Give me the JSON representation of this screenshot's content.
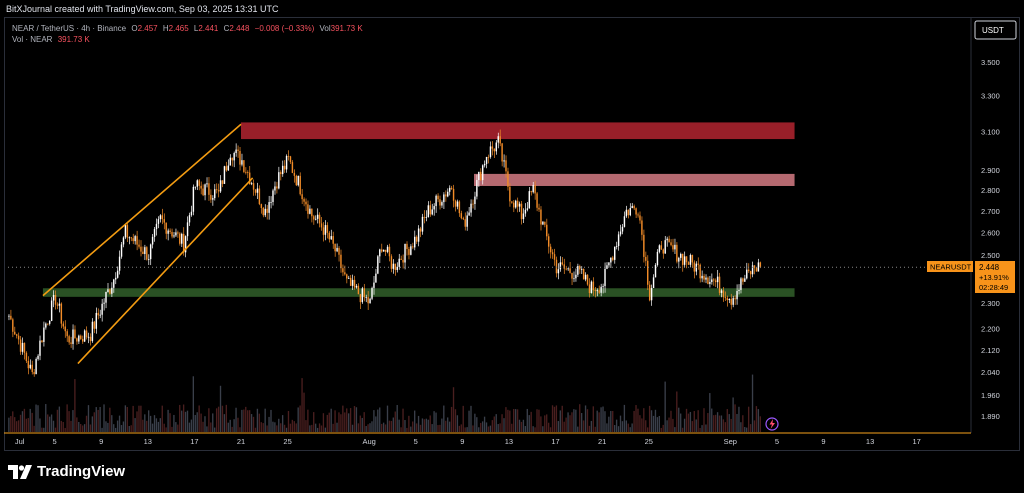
{
  "header": {
    "attribution": "BitXJournal created with TradingView.com, Sep 03, 2025 13:31 UTC"
  },
  "legend": {
    "symbol": "NEAR / TetherUS · 4h · Binance",
    "open_label": "O",
    "open": "2.457",
    "high_label": "H",
    "high": "2.465",
    "low_label": "L",
    "low": "2.441",
    "close_label": "C",
    "close": "2.448",
    "change": "−0.008 (−0.33%)",
    "volume_label": "Vol",
    "volume": "391.73 K",
    "vol_line_label": "Vol · NEAR",
    "vol_line_value": "391.73 K"
  },
  "price_scale": {
    "currency": "USDT",
    "ticks": [
      "3.500",
      "3.300",
      "3.100",
      "2.900",
      "2.800",
      "2.700",
      "2.600",
      "2.500",
      "2.300",
      "2.200",
      "2.120",
      "2.040",
      "1.960",
      "1.890"
    ]
  },
  "price_tag": {
    "symbol": "NEARUSDT",
    "price": "2.448",
    "change": "+13.91%",
    "countdown": "02:28:49"
  },
  "footer": {
    "brand": "TradingView"
  },
  "colors": {
    "up": "#ffffff",
    "down": "#f28c28",
    "channel": "#f39c12",
    "resistance_upper": "#a8222e",
    "resistance_lower": "#c9747c",
    "support": "#2f5a28"
  },
  "chart_data": {
    "type": "candlestick",
    "symbol": "NEARUSDT",
    "interval": "4h",
    "exchange": "Binance",
    "x_axis": {
      "tick_labels": [
        "Jul",
        "5",
        "9",
        "13",
        "17",
        "21",
        "25",
        "Aug",
        "5",
        "9",
        "13",
        "17",
        "21",
        "25",
        "Sep",
        "5",
        "9",
        "13",
        "17"
      ]
    },
    "y_axis": {
      "scale": "log",
      "range": [
        1.86,
        3.7
      ]
    },
    "close_path": {
      "dates": [
        "2025-07-01",
        "2025-07-03",
        "2025-07-04",
        "2025-07-05",
        "2025-07-06",
        "2025-07-08",
        "2025-07-10",
        "2025-07-11",
        "2025-07-13",
        "2025-07-14",
        "2025-07-16",
        "2025-07-17",
        "2025-07-19",
        "2025-07-20",
        "2025-07-21",
        "2025-07-23",
        "2025-07-24",
        "2025-07-25",
        "2025-07-27",
        "2025-07-28",
        "2025-07-29",
        "2025-07-30",
        "2025-08-01",
        "2025-08-02",
        "2025-08-03",
        "2025-08-05",
        "2025-08-06",
        "2025-08-08",
        "2025-08-09",
        "2025-08-10",
        "2025-08-11",
        "2025-08-12",
        "2025-08-13",
        "2025-08-14",
        "2025-08-15",
        "2025-08-16",
        "2025-08-17",
        "2025-08-19",
        "2025-08-20",
        "2025-08-21",
        "2025-08-23",
        "2025-08-24",
        "2025-08-25",
        "2025-08-26",
        "2025-08-27",
        "2025-08-29",
        "2025-08-31",
        "2025-09-01",
        "2025-09-02",
        "2025-09-03"
      ],
      "closes": [
        2.25,
        2.03,
        2.2,
        2.32,
        2.16,
        2.18,
        2.4,
        2.6,
        2.5,
        2.66,
        2.55,
        2.82,
        2.78,
        3.0,
        2.95,
        2.7,
        2.85,
        2.95,
        2.68,
        2.62,
        2.52,
        2.38,
        2.3,
        2.55,
        2.45,
        2.58,
        2.7,
        2.82,
        2.63,
        2.8,
        2.98,
        3.04,
        2.78,
        2.68,
        2.8,
        2.6,
        2.45,
        2.42,
        2.36,
        2.38,
        2.7,
        2.72,
        2.34,
        2.55,
        2.52,
        2.45,
        2.37,
        2.32,
        2.39,
        2.448
      ]
    },
    "zones": [
      {
        "name": "resistance",
        "from": 3.06,
        "to": 3.15
      },
      {
        "name": "resistance",
        "from": 2.82,
        "to": 2.88
      },
      {
        "name": "support",
        "from": 2.325,
        "to": 2.36
      }
    ],
    "trendlines": [
      {
        "name": "channel-upper",
        "points": [
          [
            "2025-07-04",
            2.33
          ],
          [
            "2025-07-21",
            3.14
          ]
        ]
      },
      {
        "name": "channel-lower",
        "points": [
          [
            "2025-07-07",
            2.07
          ],
          [
            "2025-07-22",
            2.86
          ]
        ]
      }
    ],
    "last_price": 2.448,
    "last_change_pct": 13.91,
    "volume_last": "391.73 K"
  }
}
